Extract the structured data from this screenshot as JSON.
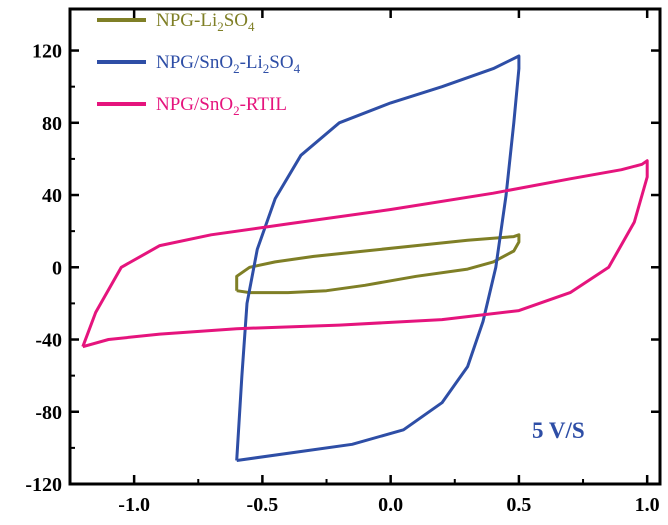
{
  "chart_data": {
    "type": "line",
    "title": "",
    "xlabel": "",
    "ylabel": "",
    "xlim": [
      -1.25,
      1.05
    ],
    "ylim": [
      -120,
      143
    ],
    "grid": false,
    "legend_position": "top-left",
    "x_ticks": [
      -1.0,
      -0.5,
      0.0,
      0.5,
      1.0
    ],
    "x_tick_labels": [
      "-1.0",
      "-0.5",
      "0.0",
      "0.5",
      "1.0"
    ],
    "y_ticks": [
      -120,
      -80,
      -40,
      0,
      40,
      80,
      120
    ],
    "y_tick_labels": [
      "-120",
      "-80",
      "-40",
      "0",
      "40",
      "80",
      "120"
    ],
    "annotation": {
      "text": "5 V/S",
      "color": "#2e4ea6"
    },
    "series": [
      {
        "name": "NPG-Li2SO4",
        "legend_parts": [
          {
            "t": "NPG-Li",
            "sub": false
          },
          {
            "t": "2",
            "sub": true
          },
          {
            "t": "SO",
            "sub": false
          },
          {
            "t": "4",
            "sub": true
          }
        ],
        "color": "#7f7f26",
        "points": [
          [
            -0.6,
            -13
          ],
          [
            -0.6,
            -5
          ],
          [
            -0.55,
            0
          ],
          [
            -0.45,
            3
          ],
          [
            -0.3,
            6
          ],
          [
            -0.1,
            9
          ],
          [
            0.1,
            12
          ],
          [
            0.3,
            15
          ],
          [
            0.48,
            17
          ],
          [
            0.5,
            18
          ],
          [
            0.5,
            14
          ],
          [
            0.48,
            9
          ],
          [
            0.4,
            3
          ],
          [
            0.3,
            -1
          ],
          [
            0.1,
            -5
          ],
          [
            -0.1,
            -10
          ],
          [
            -0.25,
            -13
          ],
          [
            -0.4,
            -14
          ],
          [
            -0.55,
            -14
          ],
          [
            -0.6,
            -13
          ]
        ]
      },
      {
        "name": "NPG/SnO2-Li2SO4",
        "legend_parts": [
          {
            "t": "NPG/SnO",
            "sub": false
          },
          {
            "t": "2",
            "sub": true
          },
          {
            "t": "-Li",
            "sub": false
          },
          {
            "t": "2",
            "sub": true
          },
          {
            "t": "SO",
            "sub": false
          },
          {
            "t": "4",
            "sub": true
          }
        ],
        "color": "#2e4ea6",
        "points": [
          [
            -0.6,
            -107
          ],
          [
            -0.58,
            -60
          ],
          [
            -0.56,
            -20
          ],
          [
            -0.52,
            10
          ],
          [
            -0.45,
            38
          ],
          [
            -0.35,
            62
          ],
          [
            -0.2,
            80
          ],
          [
            0.0,
            91
          ],
          [
            0.2,
            100
          ],
          [
            0.4,
            110
          ],
          [
            0.5,
            117
          ],
          [
            0.5,
            110
          ],
          [
            0.48,
            80
          ],
          [
            0.45,
            40
          ],
          [
            0.41,
            0
          ],
          [
            0.36,
            -30
          ],
          [
            0.3,
            -55
          ],
          [
            0.2,
            -75
          ],
          [
            0.05,
            -90
          ],
          [
            -0.15,
            -98
          ],
          [
            -0.35,
            -102
          ],
          [
            -0.6,
            -107
          ]
        ]
      },
      {
        "name": "NPG/SnO2-RTIL",
        "legend_parts": [
          {
            "t": "NPG/SnO",
            "sub": false
          },
          {
            "t": "2",
            "sub": true
          },
          {
            "t": "-RTIL",
            "sub": false
          }
        ],
        "color": "#e5147d",
        "points": [
          [
            -1.2,
            -44
          ],
          [
            -1.15,
            -25
          ],
          [
            -1.05,
            0
          ],
          [
            -0.9,
            12
          ],
          [
            -0.7,
            18
          ],
          [
            -0.4,
            24
          ],
          [
            0.0,
            32
          ],
          [
            0.4,
            41
          ],
          [
            0.7,
            49
          ],
          [
            0.9,
            54
          ],
          [
            0.98,
            57
          ],
          [
            1.0,
            59
          ],
          [
            1.0,
            50
          ],
          [
            0.95,
            25
          ],
          [
            0.85,
            0
          ],
          [
            0.7,
            -14
          ],
          [
            0.5,
            -24
          ],
          [
            0.2,
            -29
          ],
          [
            -0.2,
            -32
          ],
          [
            -0.6,
            -34
          ],
          [
            -0.9,
            -37
          ],
          [
            -1.1,
            -40
          ],
          [
            -1.2,
            -44
          ]
        ]
      }
    ]
  }
}
